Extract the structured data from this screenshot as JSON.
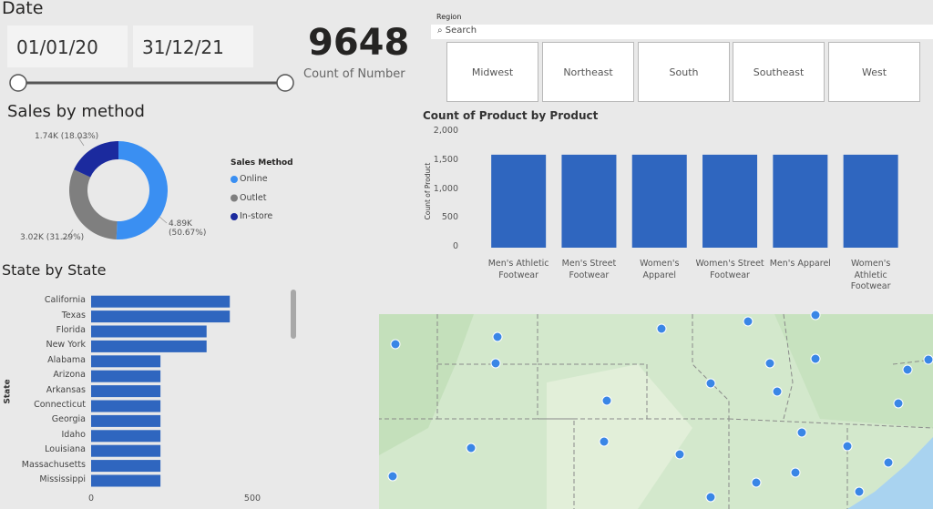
{
  "date_slicer": {
    "title": "Date",
    "start": "01/01/20",
    "end": "31/12/21"
  },
  "card": {
    "value": 9648,
    "label": "Count of Number"
  },
  "region_slicer": {
    "title": "Region",
    "search_placeholder": "Search",
    "options": [
      "Midwest",
      "Northeast",
      "South",
      "Southeast",
      "West"
    ]
  },
  "chart_data": [
    {
      "type": "donut",
      "title": "Sales by method",
      "legend_title": "Sales Method",
      "categories": [
        "Online",
        "Outlet",
        "In-store"
      ],
      "values": [
        4890,
        3020,
        1740
      ],
      "value_labels": [
        "4.89K (50.67%)",
        "3.02K (31.29%)",
        "1.74K (18.03%)"
      ],
      "colors": [
        "#3a8ff2",
        "#7f7f7f",
        "#1b2a9e"
      ],
      "legend": "right"
    },
    {
      "type": "bar",
      "title": "Count of Product by Product",
      "y_label": "Count of Product",
      "categories": [
        "Men's Athletic Footwear",
        "Men's Street Footwear",
        "Women's Apparel",
        "Women's Street Footwear",
        "Men's Apparel",
        "Women's Athletic Footwear"
      ],
      "values": [
        1608,
        1608,
        1608,
        1608,
        1608,
        1608
      ],
      "color": "#2f66bf",
      "ylim": [
        0,
        2000
      ],
      "yticks": [
        0,
        500,
        {
          "value": 1000,
          "label": "1,000"
        },
        {
          "value": 1500,
          "label": "1,500"
        },
        {
          "value": 2000,
          "label": "2,000"
        }
      ]
    },
    {
      "type": "hbar",
      "title": "State by State",
      "y_label": "State",
      "categories": [
        "California",
        "Texas",
        "Florida",
        "New York",
        "Alabama",
        "Arizona",
        "Arkansas",
        "Connecticut",
        "Georgia",
        "Idaho",
        "Louisiana",
        "Massachusetts",
        "Mississippi"
      ],
      "values": [
        430,
        430,
        358,
        358,
        215,
        215,
        215,
        215,
        215,
        215,
        215,
        215,
        215
      ],
      "color": "#2f66bf",
      "xlim": [
        0,
        500
      ],
      "xticks": [
        0,
        500
      ]
    }
  ]
}
